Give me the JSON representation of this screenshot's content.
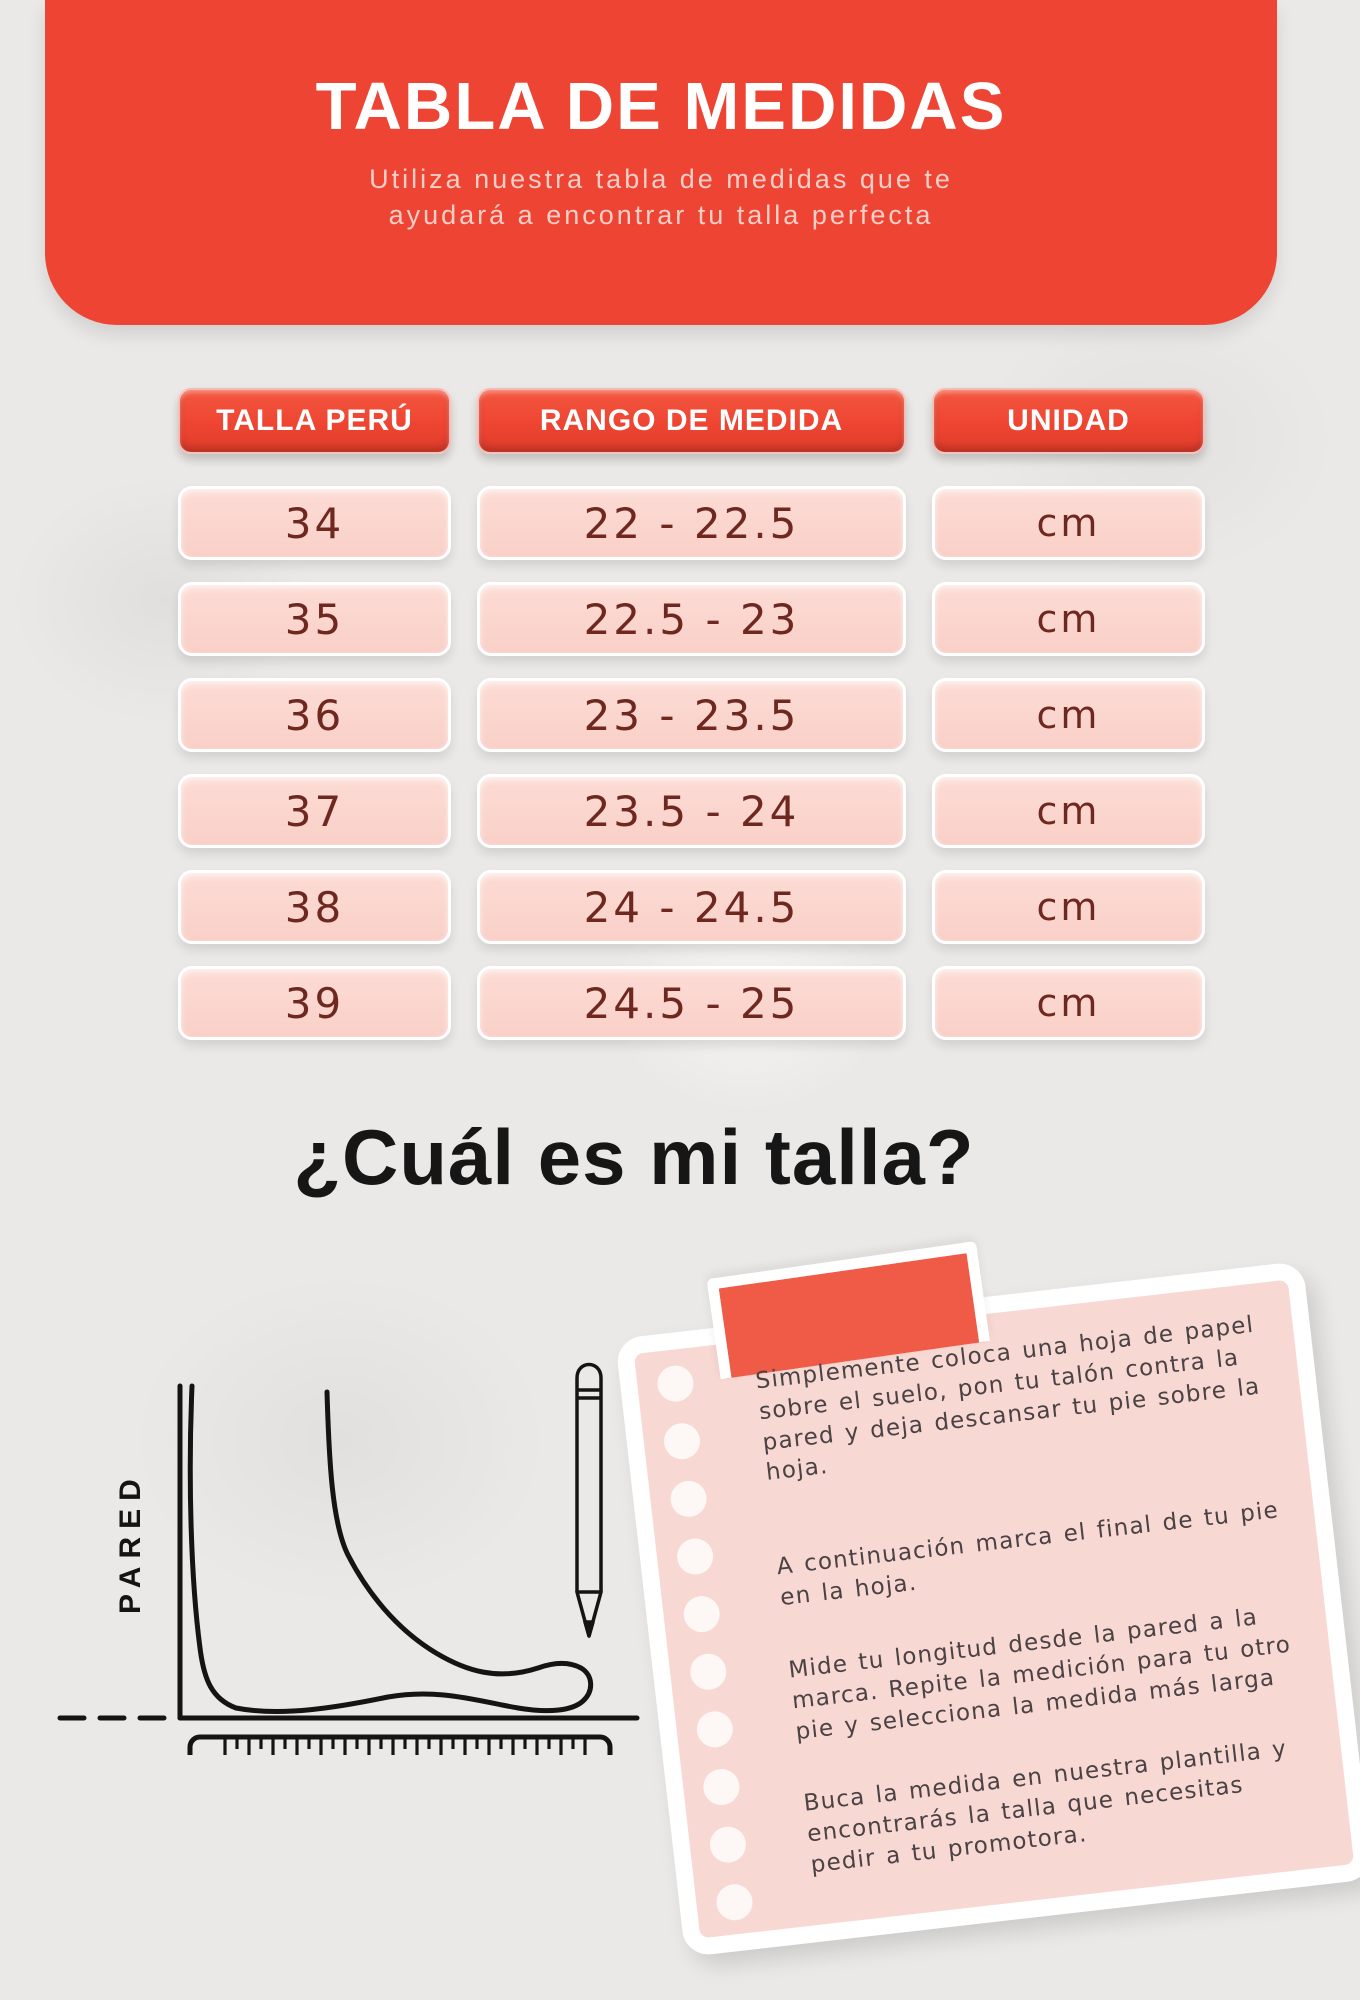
{
  "header": {
    "title": "TABLA DE MEDIDAS",
    "subtitle_line1": "Utiliza nuestra tabla de medidas que te",
    "subtitle_line2": "ayudará a encontrar tu talla perfecta"
  },
  "table": {
    "columns": [
      "TALLA PERÚ",
      "RANGO DE MEDIDA",
      "UNIDAD"
    ],
    "rows": [
      {
        "size": "34",
        "range": "22 - 22.5",
        "unit": "cm"
      },
      {
        "size": "35",
        "range": "22.5 - 23",
        "unit": "cm"
      },
      {
        "size": "36",
        "range": "23 - 23.5",
        "unit": "cm"
      },
      {
        "size": "37",
        "range": "23.5 - 24",
        "unit": "cm"
      },
      {
        "size": "38",
        "range": "24 - 24.5",
        "unit": "cm"
      },
      {
        "size": "39",
        "range": "24.5 - 25",
        "unit": "cm"
      }
    ]
  },
  "question": {
    "title": "¿Cuál es mi talla?"
  },
  "diagram": {
    "wall_label": "PARED",
    "icons": [
      "foot-outline-icon",
      "pencil-icon",
      "ruler-icon",
      "wall-line",
      "floor-line"
    ]
  },
  "note": {
    "paragraphs": [
      "Simplemente coloca una hoja de papel sobre el suelo, pon tu talón contra la pared y deja descansar tu pie sobre la hoja.",
      "A continuación marca el final de tu pie en la hoja.",
      "Mide tu longitud desde la pared a la marca. Repite la medición para tu otro pie y selecciona la medida más larga",
      "Buca la medida en nuestra plantilla y encontrarás la talla que necesitas pedir a tu promotora."
    ]
  },
  "colors": {
    "banner_red": "#ed4434",
    "pill_red": "#ee4532",
    "row_pink": "#f9d0c8",
    "row_text": "#6f281f",
    "note_pink": "#f8d8d2",
    "tape_red": "#ef5b47",
    "background": "#eae9e7",
    "ink": "#111111"
  }
}
